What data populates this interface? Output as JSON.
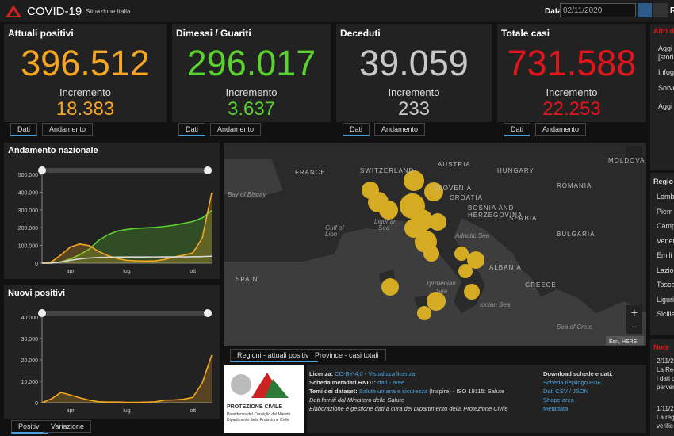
{
  "header": {
    "title": "COVID-19",
    "subtitle": "Situazione Italia",
    "date_label": "Data",
    "date_value": "02/11/2020",
    "cut_label": "R"
  },
  "cards": [
    {
      "title": "Attuali positivi",
      "value": "396.512",
      "increment_label": "Incremento",
      "increment": "18.383",
      "tabs": [
        "Dati",
        "Andamento"
      ]
    },
    {
      "title": "Dimessi / Guariti",
      "value": "296.017",
      "increment_label": "Incremento",
      "increment": "3.637",
      "tabs": [
        "Dati",
        "Andamento"
      ]
    },
    {
      "title": "Deceduti",
      "value": "39.059",
      "increment_label": "Incremento",
      "increment": "233",
      "tabs": [
        "Dati",
        "Andamento"
      ]
    },
    {
      "title": "Totale casi",
      "value": "731.588",
      "increment_label": "Incremento",
      "increment": "22.253",
      "tabs": [
        "Dati",
        "Andamento"
      ]
    }
  ],
  "charts": [
    {
      "type": "line",
      "title": "Andamento nazionale",
      "categories": [
        null,
        null,
        null,
        "apr",
        null,
        null,
        null,
        null,
        null,
        "lug",
        null,
        null,
        null,
        null,
        null,
        null,
        "ott",
        null,
        null
      ],
      "ylim": [
        0,
        500000
      ],
      "yticks": [
        {
          "value": 0,
          "label": "0"
        },
        {
          "value": 100000,
          "label": "100.000"
        },
        {
          "value": 200000,
          "label": "200.000"
        },
        {
          "value": 300000,
          "label": "300.000"
        },
        {
          "value": 400000,
          "label": "400.000"
        },
        {
          "value": 500000,
          "label": "500.000"
        }
      ],
      "series": [
        {
          "color": "#5bd12f",
          "area": true,
          "values": [
            0,
            600,
            7400,
            24000,
            48000,
            79000,
            128000,
            160000,
            181000,
            190000,
            196000,
            199000,
            202000,
            207000,
            214000,
            224000,
            235000,
            255000,
            296017
          ]
        },
        {
          "color": "#f5a623",
          "area": true,
          "values": [
            200,
            7000,
            46000,
            91000,
            108000,
            99000,
            66000,
            42000,
            26000,
            16000,
            13000,
            12000,
            13000,
            21000,
            35000,
            45000,
            58000,
            142000,
            396512
          ]
        },
        {
          "color": "#d8d8d8",
          "area": false,
          "values": [
            7,
            460,
            6100,
            16500,
            24000,
            29000,
            32000,
            33500,
            34300,
            34700,
            34950,
            35100,
            35200,
            35400,
            35500,
            35700,
            36000,
            37000,
            39059
          ]
        }
      ]
    },
    {
      "type": "line",
      "title": "Nuovi positivi",
      "categories": [
        null,
        null,
        null,
        "apr",
        null,
        null,
        null,
        null,
        null,
        "lug",
        null,
        null,
        null,
        null,
        null,
        null,
        "ott",
        null,
        null
      ],
      "ylim": [
        0,
        40000
      ],
      "yticks": [
        {
          "value": 0,
          "label": "0"
        },
        {
          "value": 10000,
          "label": "10.000"
        },
        {
          "value": 20000,
          "label": "20.000"
        },
        {
          "value": 30000,
          "label": "30.000"
        },
        {
          "value": 40000,
          "label": "40.000"
        }
      ],
      "series": [
        {
          "color": "#f5a623",
          "area": true,
          "values": [
            0,
            1800,
            4800,
            3600,
            2300,
            1200,
            450,
            300,
            300,
            150,
            170,
            250,
            400,
            1200,
            1300,
            1600,
            2500,
            9300,
            22253
          ]
        }
      ]
    }
  ],
  "chart_tabs": [
    "Positivi",
    "Variazione"
  ],
  "map": {
    "labels": [
      "FRANCE",
      "SWITZERLAND",
      "AUSTRIA",
      "HUNGARY",
      "MOLDOVA",
      "ROMANIA",
      "SLOVENIA",
      "CROATIA",
      "BOSNIA AND",
      "HERZEGOVINA",
      "SERBIA",
      "BULGARIA",
      "Bay of Biscay",
      "Gulf of",
      "Lion",
      "Ligurian",
      "Sea",
      "Adriatic Sea",
      "ALBANIA",
      "GREECE",
      "SPAIN",
      "Tyrrhenian",
      "Sea",
      "Ionian Sea",
      "Sea of Crete"
    ],
    "attribution": "Esri, HERE",
    "tabs": [
      "Regioni - attuali positivi",
      "Province - casi totali"
    ]
  },
  "logo": {
    "name": "PROTEZIONE CIVILE",
    "line1": "Presidenza del Consiglio dei Ministri",
    "line2": "Dipartimento della Protezione Civile"
  },
  "info": {
    "license_label": "Licenza:",
    "license": "CC-BY-4.0",
    "license_link": "Visualizza licenza",
    "rndt_label": "Scheda metadati RNDT:",
    "rndt_links": "dati - aree",
    "themes_label": "Temi dei dataset:",
    "themes_link": "Salute umana e sicurezza",
    "themes_rest": "(Inspire) - ISO 19115: Salute",
    "source": "Dati forniti dal Ministero della Salute",
    "management": "Elaborazione e gestione dati a cura del Dipartimento della Protezione Civile"
  },
  "downloads": {
    "title": "Download schede e dati:",
    "items": [
      "Scheda riepilogo PDF",
      "Dati CSV / JSON",
      "Shape area",
      "Metadata"
    ]
  },
  "side": {
    "heading": "Altri d",
    "links": [
      "Aggi",
      "[stori",
      "Infog",
      "Sorve",
      "Aggi"
    ],
    "regions_title": "Regio",
    "regions": [
      "Lomb",
      "Piem",
      "Camp",
      "Venet",
      "Emili",
      "Lazio",
      "Tosca",
      "Liguri",
      "Sicilia"
    ],
    "notes_title": "Note",
    "notes": [
      "2/11/2",
      "La Reg",
      "i dati c",
      "perven",
      "1/11/2",
      "La regi",
      "verific"
    ]
  }
}
